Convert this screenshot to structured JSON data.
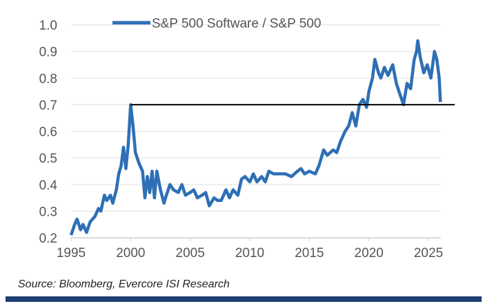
{
  "chart_data": {
    "type": "line",
    "legend": "top",
    "grid": true,
    "xlim": [
      1995,
      2027.2
    ],
    "ylim": [
      0.2,
      1.0
    ],
    "xticks": [
      "1995",
      "2000",
      "2005",
      "2010",
      "2015",
      "2020",
      "2025"
    ],
    "yticks": [
      "0.2",
      "0.3",
      "0.4",
      "0.5",
      "0.6",
      "0.7",
      "0.8",
      "0.9",
      "1.0"
    ],
    "series": [
      {
        "name": "S&P 500 Software / S&P 500",
        "color": "#2e6fb5",
        "points": [
          [
            1995.0,
            0.21
          ],
          [
            1995.3,
            0.25
          ],
          [
            1995.5,
            0.27
          ],
          [
            1995.8,
            0.23
          ],
          [
            1996.0,
            0.25
          ],
          [
            1996.3,
            0.22
          ],
          [
            1996.6,
            0.26
          ],
          [
            1997.0,
            0.28
          ],
          [
            1997.3,
            0.31
          ],
          [
            1997.5,
            0.3
          ],
          [
            1997.8,
            0.36
          ],
          [
            1998.0,
            0.34
          ],
          [
            1998.3,
            0.36
          ],
          [
            1998.5,
            0.33
          ],
          [
            1998.8,
            0.38
          ],
          [
            1999.0,
            0.44
          ],
          [
            1999.2,
            0.47
          ],
          [
            1999.4,
            0.54
          ],
          [
            1999.6,
            0.46
          ],
          [
            1999.8,
            0.55
          ],
          [
            2000.0,
            0.7
          ],
          [
            2000.2,
            0.62
          ],
          [
            2000.4,
            0.52
          ],
          [
            2000.7,
            0.48
          ],
          [
            2001.0,
            0.45
          ],
          [
            2001.2,
            0.35
          ],
          [
            2001.4,
            0.43
          ],
          [
            2001.6,
            0.37
          ],
          [
            2001.8,
            0.45
          ],
          [
            2002.0,
            0.35
          ],
          [
            2002.2,
            0.45
          ],
          [
            2002.5,
            0.38
          ],
          [
            2002.8,
            0.33
          ],
          [
            2003.0,
            0.36
          ],
          [
            2003.3,
            0.4
          ],
          [
            2003.6,
            0.38
          ],
          [
            2004.0,
            0.37
          ],
          [
            2004.3,
            0.4
          ],
          [
            2004.6,
            0.36
          ],
          [
            2005.0,
            0.37
          ],
          [
            2005.3,
            0.38
          ],
          [
            2005.6,
            0.35
          ],
          [
            2006.0,
            0.36
          ],
          [
            2006.3,
            0.37
          ],
          [
            2006.6,
            0.32
          ],
          [
            2007.0,
            0.35
          ],
          [
            2007.3,
            0.34
          ],
          [
            2007.6,
            0.34
          ],
          [
            2008.0,
            0.38
          ],
          [
            2008.3,
            0.35
          ],
          [
            2008.6,
            0.38
          ],
          [
            2009.0,
            0.36
          ],
          [
            2009.3,
            0.42
          ],
          [
            2009.6,
            0.43
          ],
          [
            2010.0,
            0.41
          ],
          [
            2010.3,
            0.44
          ],
          [
            2010.6,
            0.41
          ],
          [
            2011.0,
            0.43
          ],
          [
            2011.3,
            0.41
          ],
          [
            2011.6,
            0.45
          ],
          [
            2012.0,
            0.44
          ],
          [
            2012.5,
            0.44
          ],
          [
            2013.0,
            0.44
          ],
          [
            2013.5,
            0.43
          ],
          [
            2014.0,
            0.45
          ],
          [
            2014.3,
            0.46
          ],
          [
            2014.6,
            0.44
          ],
          [
            2015.0,
            0.45
          ],
          [
            2015.5,
            0.44
          ],
          [
            2015.8,
            0.47
          ],
          [
            2016.2,
            0.53
          ],
          [
            2016.5,
            0.51
          ],
          [
            2017.0,
            0.53
          ],
          [
            2017.3,
            0.52
          ],
          [
            2017.6,
            0.56
          ],
          [
            2018.0,
            0.6
          ],
          [
            2018.3,
            0.62
          ],
          [
            2018.6,
            0.67
          ],
          [
            2018.9,
            0.62
          ],
          [
            2019.2,
            0.7
          ],
          [
            2019.5,
            0.72
          ],
          [
            2019.8,
            0.69
          ],
          [
            2020.0,
            0.75
          ],
          [
            2020.3,
            0.8
          ],
          [
            2020.5,
            0.87
          ],
          [
            2020.8,
            0.82
          ],
          [
            2021.0,
            0.8
          ],
          [
            2021.3,
            0.84
          ],
          [
            2021.6,
            0.81
          ],
          [
            2022.0,
            0.85
          ],
          [
            2022.3,
            0.78
          ],
          [
            2022.6,
            0.74
          ],
          [
            2022.9,
            0.7
          ],
          [
            2023.2,
            0.78
          ],
          [
            2023.5,
            0.76
          ],
          [
            2023.8,
            0.87
          ],
          [
            2024.0,
            0.9
          ],
          [
            2024.1,
            0.94
          ],
          [
            2024.3,
            0.88
          ],
          [
            2024.6,
            0.82
          ],
          [
            2024.9,
            0.85
          ],
          [
            2025.2,
            0.8
          ],
          [
            2025.5,
            0.9
          ],
          [
            2025.7,
            0.87
          ],
          [
            2025.9,
            0.8
          ],
          [
            2026.0,
            0.71
          ]
        ]
      }
    ],
    "reference_line": {
      "y": 0.7,
      "x_from": 2000,
      "x_to": 2027.2,
      "color": "#000000"
    }
  },
  "source": "Source:  Bloomberg, Evercore ISI Research",
  "colors": {
    "footer_bar": "#1f3f73"
  }
}
